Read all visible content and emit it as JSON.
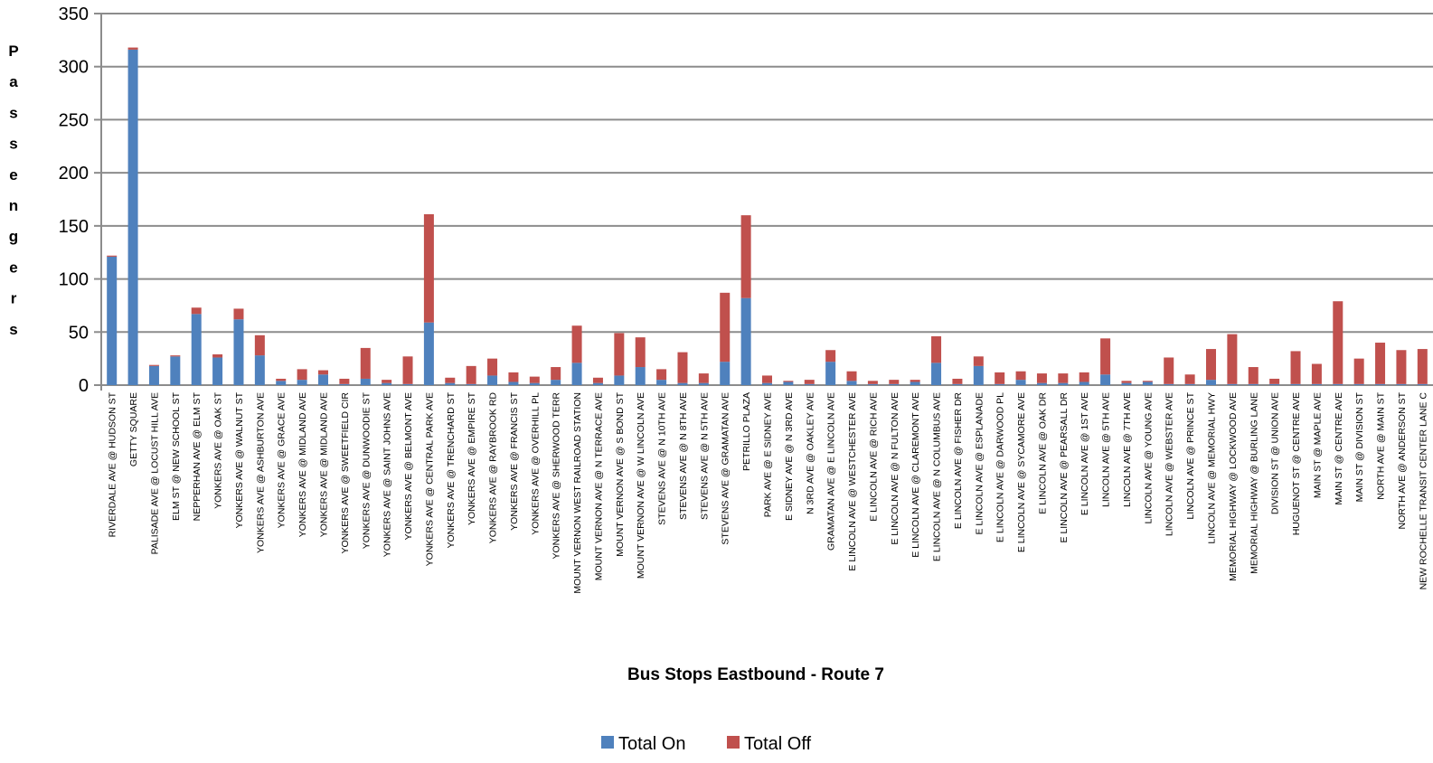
{
  "chart_data": {
    "type": "bar",
    "stacked": true,
    "xlabel": "Bus Stops Eastbound - Route 7",
    "ylabel": "Passengers",
    "ylim": [
      0,
      350
    ],
    "yticks": [
      "0",
      "50",
      "100",
      "150",
      "200",
      "250",
      "300",
      "350"
    ],
    "grid": true,
    "legend_position": "bottom",
    "colors": {
      "on": "#4f81bd",
      "off": "#c0504d",
      "grid": "#8c8c8c"
    },
    "categories": [
      "RIVERDALE AVE @ HUDSON ST",
      "GETTY SQUARE",
      "PALISADE AVE @ LOCUST HILL AVE",
      "ELM ST @ NEW SCHOOL ST",
      "NEPPERHAN AVE @ ELM ST",
      "YONKERS AVE @ OAK ST",
      "YONKERS AVE @ WALNUT ST",
      "YONKERS AVE @ ASHBURTON AVE",
      "YONKERS AVE @ GRACE AVE",
      "YONKERS AVE @ MIDLAND AVE",
      "YONKERS AVE @ MIDLAND AVE",
      "YONKERS AVE @ SWEETFIELD CIR",
      "YONKERS AVE @ DUNWOODIE ST",
      "YONKERS AVE @ SAINT JOHNS AVE",
      "YONKERS AVE @ BELMONT AVE",
      "YONKERS AVE @ CENTRAL PARK AVE",
      "YONKERS AVE @ TRENCHARD ST",
      "YONKERS AVE @ EMPIRE ST",
      "YONKERS AVE @ RAYBROOK RD",
      "YONKERS AVE @ FRANCIS ST",
      "YONKERS AVE @ OVERHILL PL",
      "YONKERS AVE @ SHERWOOD TERR",
      "MOUNT VERNON WEST RAILROAD STATION",
      "MOUNT VERNON AVE @ N TERRACE AVE",
      "MOUNT VERNON AVE @ S BOND ST",
      "MOUNT VERNON AVE @ W LINCOLN AVE",
      "STEVENS AVE @ N 10TH AVE",
      "STEVENS AVE @ N 8TH AVE",
      "STEVENS AVE @ N 5TH AVE",
      "STEVENS AVE @ GRAMATAN AVE",
      "PETRILLO PLAZA",
      "PARK AVE @ E SIDNEY AVE",
      "E SIDNEY AVE @ N 3RD AVE",
      "N 3RD AVE @ OAKLEY AVE",
      "GRAMATAN AVE @ E LINCOLN AVE",
      "E LINCOLN  AVE @ WESTCHESTER AVE",
      "E LINCOLN  AVE @ RICH AVE",
      "E LINCOLN  AVE @ N FULTON AVE",
      "E LINCOLN  AVE @ CLAREMONT AVE",
      "E LINCOLN  AVE @ N COLUMBUS AVE",
      "E LINCOLN  AVE @ FISHER DR",
      "E LINCOLN  AVE @ ESPLANADE",
      "E LINCOLN  AVE @ DARWOOD PL",
      "E LINCOLN  AVE @ SYCAMORE AVE",
      "E LINCOLN  AVE @ OAK DR",
      "E LINCOLN  AVE @ PEARSALL DR",
      "E LINCOLN AVE @ 1ST AVE",
      "LINCOLN  AVE @ 5TH AVE",
      "LINCOLN  AVE @ 7TH AVE",
      "LINCOLN  AVE @ YOUNG AVE",
      "LINCOLN AVE @ WEBSTER AVE",
      "LINCOLN AVE @ PRINCE ST",
      "LINCOLN AVE @ MEMORIAL HWY",
      "MEMORIAL HIGHWAY @ LOCKWOOD AVE",
      "MEMORIAL HIGHWAY @ BURLING LANE",
      "DIVISION ST @ UNION AVE",
      "HUGUENOT ST @ CENTRE AVE",
      "MAIN ST @ MAPLE AVE",
      "MAIN ST @ CENTRE AVE",
      "MAIN ST @ DIVISION ST",
      "NORTH AVE @ MAIN ST",
      "NORTH AVE @ ANDERSON ST",
      "NEW ROCHELLE TRANSIT CENTER LANE C"
    ],
    "series": [
      {
        "name": "Total On",
        "values": [
          121,
          316,
          18,
          27,
          67,
          26,
          62,
          28,
          4,
          5,
          10,
          1,
          6,
          2,
          1,
          59,
          2,
          1,
          9,
          3,
          2,
          5,
          21,
          2,
          9,
          17,
          5,
          2,
          2,
          22,
          82,
          2,
          3,
          1,
          22,
          4,
          1,
          1,
          3,
          21,
          1,
          18,
          1,
          5,
          2,
          2,
          3,
          10,
          2,
          3,
          1,
          1,
          5,
          1,
          1,
          1,
          1,
          1,
          1,
          1,
          1,
          1,
          1
        ]
      },
      {
        "name": "Total Off",
        "values": [
          1,
          2,
          1,
          1,
          6,
          3,
          10,
          19,
          2,
          10,
          4,
          5,
          29,
          3,
          26,
          102,
          5,
          17,
          16,
          9,
          6,
          12,
          35,
          5,
          40,
          28,
          10,
          29,
          9,
          65,
          78,
          7,
          1,
          4,
          11,
          9,
          3,
          4,
          2,
          25,
          5,
          9,
          11,
          8,
          9,
          9,
          9,
          34,
          2,
          1,
          25,
          9,
          29,
          47,
          16,
          5,
          31,
          19,
          78,
          24,
          39,
          32,
          33
        ]
      }
    ]
  }
}
